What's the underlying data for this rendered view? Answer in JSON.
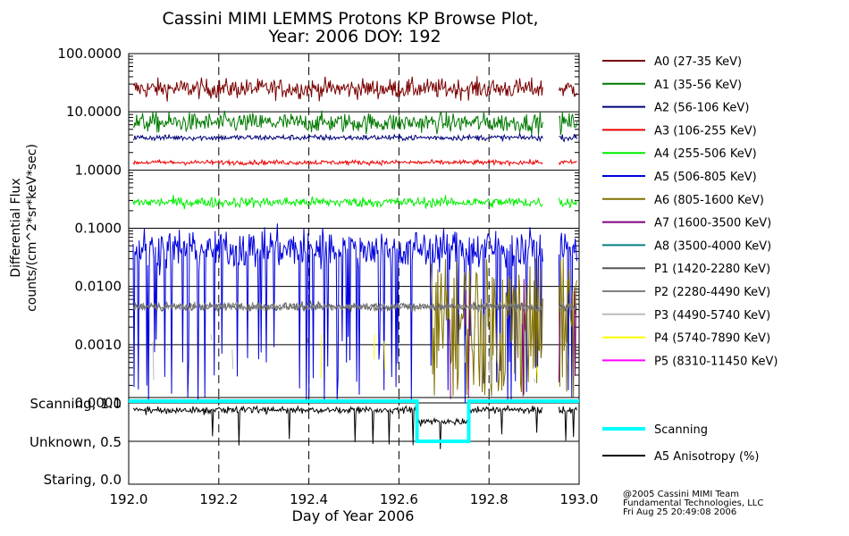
{
  "chart_data": {
    "type": "line",
    "title": "Cassini MIMI LEMMS Protons KP Browse Plot,",
    "subtitle": "Year: 2006 DOY: 192",
    "ylabel_line1": "Differential Flux",
    "ylabel_line2": "counts/(cm^2*sr*keV*sec)",
    "xlabel": "Day of Year 2006",
    "yscale": "log",
    "ylim": [
      0.0001,
      100
    ],
    "y_ticks": [
      "100.0000",
      "10.0000",
      "1.0000",
      "0.1000",
      "0.0100",
      "0.0010",
      "0.0001"
    ],
    "xlim": [
      192.0,
      193.0
    ],
    "x_ticks": [
      "192.0",
      "192.2",
      "192.4",
      "192.6",
      "192.8",
      "193.0"
    ],
    "series": [
      {
        "name": "A0 (27-35 KeV)",
        "color": "#7a0000",
        "level": 25,
        "spread": 0.17,
        "nfrac": 1.0,
        "pattern": "full"
      },
      {
        "name": "A1 (35-56 KeV)",
        "color": "#007a00",
        "level": 6.5,
        "spread": 0.17,
        "nfrac": 1.0,
        "pattern": "full"
      },
      {
        "name": "A2 (56-106 KeV)",
        "color": "#00007a",
        "level": 3.6,
        "spread": 0.05,
        "nfrac": 1.0,
        "pattern": "full"
      },
      {
        "name": "A3 (106-255 KeV)",
        "color": "#ee0000",
        "level": 1.35,
        "spread": 0.04,
        "nfrac": 1.0,
        "pattern": "full"
      },
      {
        "name": "A4 (255-506 KeV)",
        "color": "#00ee00",
        "level": 0.28,
        "spread": 0.09,
        "nfrac": 1.0,
        "pattern": "full"
      },
      {
        "name": "A5 (506-805 KeV)",
        "color": "#0000dd",
        "level": 0.045,
        "spread": 0.35,
        "nfrac": 1.0,
        "pattern": "spiky"
      },
      {
        "name": "A6 (805-1600 KeV)",
        "color": "#807000",
        "level": 0.002,
        "spread": 0.6,
        "nfrac": 1.0,
        "pattern": "late"
      },
      {
        "name": "A7 (1600-3500 KeV)",
        "color": "#800080",
        "level": 0.0015,
        "spread": 0.5,
        "nfrac": 1.0,
        "pattern": "late-sparse"
      },
      {
        "name": "A8 (3500-4000 KeV)",
        "color": "#008080",
        "level": 0.0001,
        "spread": 0.0,
        "nfrac": 1.0,
        "pattern": "none"
      },
      {
        "name": "P1 (1420-2280 KeV)",
        "color": "#555555",
        "level": 0.0045,
        "spread": 0.07,
        "nfrac": 1.0,
        "pattern": "full"
      },
      {
        "name": "P2 (2280-4490 KeV)",
        "color": "#808080",
        "level": 0.0045,
        "spread": 0.07,
        "nfrac": 1.0,
        "pattern": "full"
      },
      {
        "name": "P3 (4490-5740 KeV)",
        "color": "#bbbbbb",
        "level": 0.0002,
        "spread": 0.3,
        "nfrac": 1.0,
        "pattern": "sparse"
      },
      {
        "name": "P4 (5740-7890 KeV)",
        "color": "#ffff00",
        "level": 0.00025,
        "spread": 0.3,
        "nfrac": 1.0,
        "pattern": "sparse"
      },
      {
        "name": "P5 (8310-11450 KeV)",
        "color": "#ff00ff",
        "level": 0.0001,
        "spread": 0.0,
        "nfrac": 1.0,
        "pattern": "none"
      }
    ],
    "lower_panel": {
      "y_ticks": [
        "Scanning, 1.0",
        "Unknown, 0.5",
        "Staring, 0.0"
      ],
      "ylim": [
        0.0,
        1.0
      ],
      "scanning_steps": [
        [
          192.0,
          1.0
        ],
        [
          192.64,
          1.0
        ],
        [
          192.64,
          0.5
        ],
        [
          192.755,
          0.5
        ],
        [
          192.755,
          1.0
        ],
        [
          193.0,
          1.0
        ]
      ],
      "anisotropy_level": 0.9,
      "series": [
        {
          "name": "Scanning",
          "color": "#00ffff"
        },
        {
          "name": "A5 Anisotropy (%)",
          "color": "#000000"
        }
      ]
    },
    "data_gap_start": 192.92,
    "data_resume": 192.955,
    "grid": true,
    "legend": "right"
  },
  "credits": {
    "line1": "@2005 Cassini MIMI Team",
    "line2": "Fundamental Technologies, LLC",
    "line3": "Fri Aug 25 20:49:08 2006"
  }
}
